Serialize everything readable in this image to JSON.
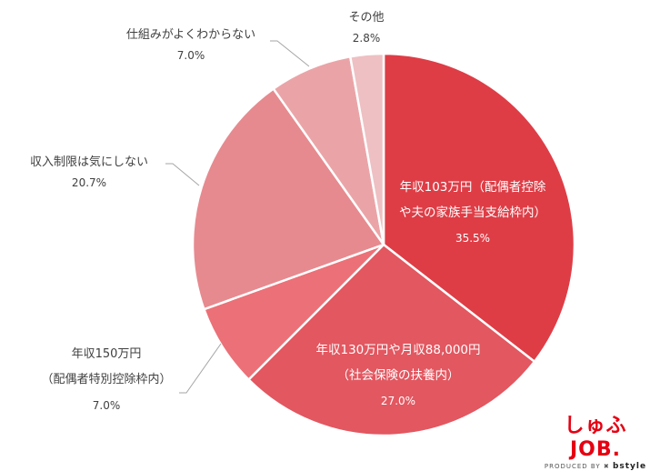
{
  "chart_data": {
    "type": "pie",
    "title": "",
    "start_angle_deg": 0,
    "direction": "clockwise",
    "slices": [
      {
        "label_lines": [
          "年収103万円（配偶者控除",
          "や夫の家族手当支給枠内）"
        ],
        "value": 35.5,
        "value_label": "35.5%",
        "color": "#DE3D46"
      },
      {
        "label_lines": [
          "年収130万円や月収88,000円",
          "（社会保険の扶養内）"
        ],
        "value": 27.0,
        "value_label": "27.0%",
        "color": "#E25760"
      },
      {
        "label_lines": [
          "年収150万円",
          "（配偶者特別控除枠内）"
        ],
        "value": 7.0,
        "value_label": "7.0%",
        "color": "#EC7077"
      },
      {
        "label_lines": [
          "収入制限は気にしない"
        ],
        "value": 20.7,
        "value_label": "20.7%",
        "color": "#E68A8F"
      },
      {
        "label_lines": [
          "仕組みがよくわからない"
        ],
        "value": 7.0,
        "value_label": "7.0%",
        "color": "#EAA4A7"
      },
      {
        "label_lines": [
          "その他"
        ],
        "value": 2.8,
        "value_label": "2.8%",
        "color": "#EEC0C3"
      }
    ]
  },
  "logo": {
    "main": "しゅふJOB.",
    "produced_by": "PRODUCED BY",
    "brand": "bstyle"
  }
}
